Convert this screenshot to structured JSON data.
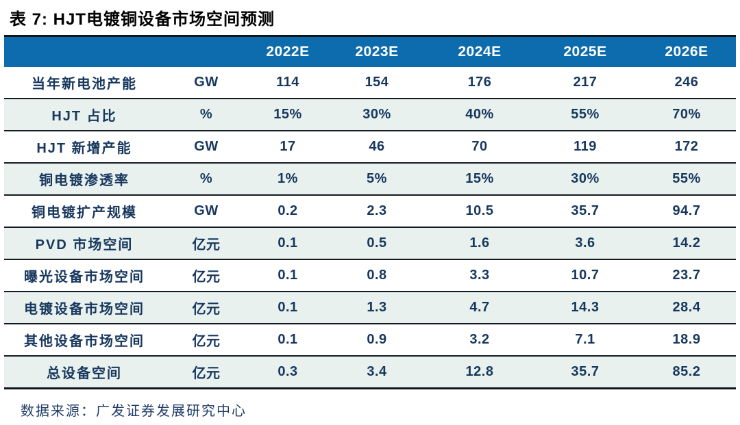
{
  "title": "表 7: HJT电镀铜设备市场空间预测",
  "source": "数据来源：广发证券发展研究中心",
  "colors": {
    "header_bg": "#0d6cad",
    "header_text": "#ffffff",
    "alt_row_bg": "#e8f1ee",
    "body_text": "#17375d",
    "border": "#10151c"
  },
  "table": {
    "header": [
      "",
      "",
      "2022E",
      "2023E",
      "2024E",
      "2025E",
      "2026E"
    ],
    "rows": [
      {
        "label": "当年新电池产能",
        "unit": "GW",
        "values": [
          "114",
          "154",
          "176",
          "217",
          "246"
        ]
      },
      {
        "label": "HJT 占比",
        "unit": "%",
        "values": [
          "15%",
          "30%",
          "40%",
          "55%",
          "70%"
        ]
      },
      {
        "label": "HJT 新增产能",
        "unit": "GW",
        "values": [
          "17",
          "46",
          "70",
          "119",
          "172"
        ]
      },
      {
        "label": "铜电镀渗透率",
        "unit": "%",
        "values": [
          "1%",
          "5%",
          "15%",
          "30%",
          "55%"
        ]
      },
      {
        "label": "铜电镀扩产规模",
        "unit": "GW",
        "values": [
          "0.2",
          "2.3",
          "10.5",
          "35.7",
          "94.7"
        ]
      },
      {
        "label": "PVD 市场空间",
        "unit": "亿元",
        "values": [
          "0.1",
          "0.5",
          "1.6",
          "3.6",
          "14.2"
        ]
      },
      {
        "label": "曝光设备市场空间",
        "unit": "亿元",
        "values": [
          "0.1",
          "0.8",
          "3.3",
          "10.7",
          "23.7"
        ]
      },
      {
        "label": "电镀设备市场空间",
        "unit": "亿元",
        "values": [
          "0.1",
          "1.3",
          "4.7",
          "14.3",
          "28.4"
        ]
      },
      {
        "label": "其他设备市场空间",
        "unit": "亿元",
        "values": [
          "0.1",
          "0.9",
          "3.2",
          "7.1",
          "18.9"
        ]
      },
      {
        "label": "总设备空间",
        "unit": "亿元",
        "values": [
          "0.3",
          "3.4",
          "12.8",
          "35.7",
          "85.2"
        ]
      }
    ]
  }
}
